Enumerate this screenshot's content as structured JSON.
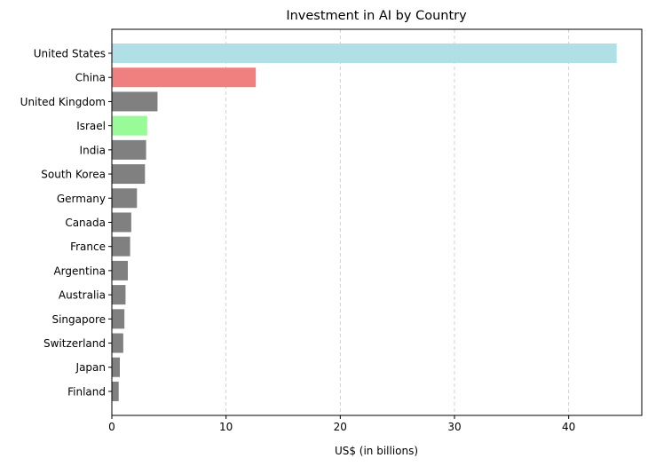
{
  "chart_data": {
    "type": "bar",
    "orientation": "horizontal",
    "title": "Investment in AI by Country",
    "xlabel": "US$ (in billions)",
    "ylabel": "",
    "xlim": [
      0,
      46.4
    ],
    "xticks": [
      0,
      10,
      20,
      30,
      40
    ],
    "grid": "x-dashed",
    "legend": "none",
    "categories": [
      "United States",
      "China",
      "United Kingdom",
      "Israel",
      "India",
      "South Korea",
      "Germany",
      "Canada",
      "France",
      "Argentina",
      "Australia",
      "Singapore",
      "Switzerland",
      "Japan",
      "Finland"
    ],
    "values": [
      44.2,
      12.6,
      4.0,
      3.1,
      3.0,
      2.9,
      2.2,
      1.7,
      1.6,
      1.4,
      1.2,
      1.1,
      1.0,
      0.7,
      0.6
    ],
    "colors": [
      "#b0e0e6",
      "#f08080",
      "#808080",
      "#98fb98",
      "#808080",
      "#808080",
      "#808080",
      "#808080",
      "#808080",
      "#808080",
      "#808080",
      "#808080",
      "#808080",
      "#808080",
      "#808080"
    ]
  }
}
